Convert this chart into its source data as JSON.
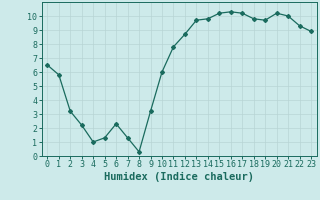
{
  "x": [
    0,
    1,
    2,
    3,
    4,
    5,
    6,
    7,
    8,
    9,
    10,
    11,
    12,
    13,
    14,
    15,
    16,
    17,
    18,
    19,
    20,
    21,
    22,
    23
  ],
  "y": [
    6.5,
    5.8,
    3.2,
    2.2,
    1.0,
    1.3,
    2.3,
    1.3,
    0.3,
    3.2,
    6.0,
    7.8,
    8.7,
    9.7,
    9.8,
    10.2,
    10.3,
    10.2,
    9.8,
    9.7,
    10.2,
    10.0,
    9.3,
    8.9
  ],
  "xlabel": "Humidex (Indice chaleur)",
  "xlim": [
    -0.5,
    23.5
  ],
  "ylim": [
    0,
    11
  ],
  "yticks": [
    0,
    1,
    2,
    3,
    4,
    5,
    6,
    7,
    8,
    9,
    10
  ],
  "xticks": [
    0,
    1,
    2,
    3,
    4,
    5,
    6,
    7,
    8,
    9,
    10,
    11,
    12,
    13,
    14,
    15,
    16,
    17,
    18,
    19,
    20,
    21,
    22,
    23
  ],
  "line_color": "#1a6b5e",
  "marker": "D",
  "marker_size": 2.0,
  "bg_color": "#cdeaea",
  "grid_color": "#b8d5d5",
  "xlabel_fontsize": 7.5,
  "tick_fontsize": 6.0
}
